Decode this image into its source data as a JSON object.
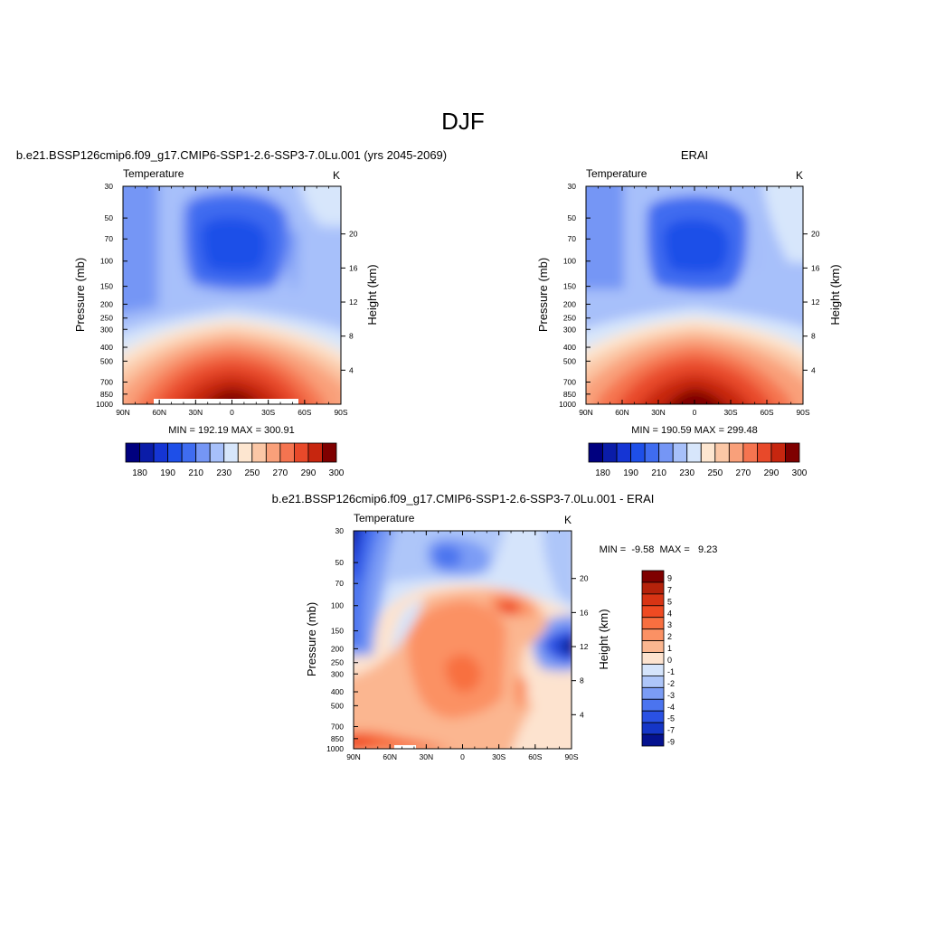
{
  "figure": {
    "title": "DJF"
  },
  "chart_data": [
    {
      "type": "heatmap",
      "subtitle": "b.e21.BSSP126cmip6.f09_g17.CMIP6-SSP1-2.6-SSP3-7.0Lu.001 (yrs 2045-2069)",
      "left_string": "Temperature",
      "right_string": "K",
      "ylabel": "Pressure (mb)",
      "y2label": "Height (km)",
      "x_ticks": [
        "90N",
        "60N",
        "30N",
        "0",
        "30S",
        "60S",
        "90S"
      ],
      "y_ticks": [
        "30",
        "50",
        "70",
        "100",
        "150",
        "200",
        "250",
        "300",
        "400",
        "500",
        "700",
        "850",
        "1000"
      ],
      "y2_ticks": [
        "20",
        "16",
        "12",
        "8",
        "4"
      ],
      "stats": "MIN = 192.19  MAX = 300.91",
      "min": 192.19,
      "max": 300.91,
      "colorbar_labels": [
        "180",
        "190",
        "210",
        "230",
        "250",
        "270",
        "290",
        "300"
      ],
      "colorbar_levels": [
        180,
        185,
        190,
        200,
        210,
        220,
        230,
        240,
        250,
        260,
        270,
        280,
        290,
        295,
        300
      ],
      "x_range": [
        "90N",
        "90S"
      ],
      "y_range": [
        1000,
        30
      ],
      "y_scale": "log"
    },
    {
      "type": "heatmap",
      "subtitle": "ERAI",
      "left_string": "Temperature",
      "right_string": "K",
      "ylabel": "Pressure (mb)",
      "y2label": "Height (km)",
      "x_ticks": [
        "90N",
        "60N",
        "30N",
        "0",
        "30S",
        "60S",
        "90S"
      ],
      "y_ticks": [
        "30",
        "50",
        "70",
        "100",
        "150",
        "200",
        "250",
        "300",
        "400",
        "500",
        "700",
        "850",
        "1000"
      ],
      "y2_ticks": [
        "20",
        "16",
        "12",
        "8",
        "4"
      ],
      "stats": "MIN = 190.59  MAX = 299.48",
      "min": 190.59,
      "max": 299.48,
      "colorbar_labels": [
        "180",
        "190",
        "210",
        "230",
        "250",
        "270",
        "290",
        "300"
      ],
      "colorbar_levels": [
        180,
        185,
        190,
        200,
        210,
        220,
        230,
        240,
        250,
        260,
        270,
        280,
        290,
        295,
        300
      ],
      "x_range": [
        "90N",
        "90S"
      ],
      "y_range": [
        1000,
        30
      ],
      "y_scale": "log"
    },
    {
      "type": "heatmap",
      "subtitle": "b.e21.BSSP126cmip6.f09_g17.CMIP6-SSP1-2.6-SSP3-7.0Lu.001 - ERAI",
      "left_string": "Temperature",
      "right_string": "K",
      "ylabel": "Pressure (mb)",
      "y2label": "Height (km)",
      "x_ticks": [
        "90N",
        "60N",
        "30N",
        "0",
        "30S",
        "60S",
        "90S"
      ],
      "y_ticks": [
        "30",
        "50",
        "70",
        "100",
        "150",
        "200",
        "250",
        "300",
        "400",
        "500",
        "700",
        "850",
        "1000"
      ],
      "y2_ticks": [
        "20",
        "16",
        "12",
        "8",
        "4"
      ],
      "stats": "MIN =  -9.58  MAX =   9.23",
      "min": -9.58,
      "max": 9.23,
      "colorbar_labels": [
        "9",
        "7",
        "5",
        "4",
        "3",
        "2",
        "1",
        "0",
        "-1",
        "-2",
        "-3",
        "-4",
        "-5",
        "-7",
        "-9"
      ],
      "x_range": [
        "90N",
        "90S"
      ],
      "y_range": [
        1000,
        30
      ],
      "y_scale": "log"
    }
  ],
  "palettes": {
    "temperature": [
      "#00007f",
      "#0a1ca8",
      "#1535d4",
      "#1e4fe8",
      "#3f6cf0",
      "#7596f5",
      "#a7c0fa",
      "#d7e6fb",
      "#fde6d0",
      "#fbc7a6",
      "#f9a07a",
      "#f57450",
      "#e8492a",
      "#c7260f",
      "#7f0000"
    ],
    "difference": [
      "#7f0000",
      "#b5220b",
      "#d83414",
      "#ef4a22",
      "#f86f40",
      "#fb9164",
      "#fbb690",
      "#fde3cf",
      "#d5e4fb",
      "#aec6f9",
      "#7b9cf5",
      "#4b74ef",
      "#2a51e3",
      "#1536c7",
      "#05128f"
    ]
  }
}
